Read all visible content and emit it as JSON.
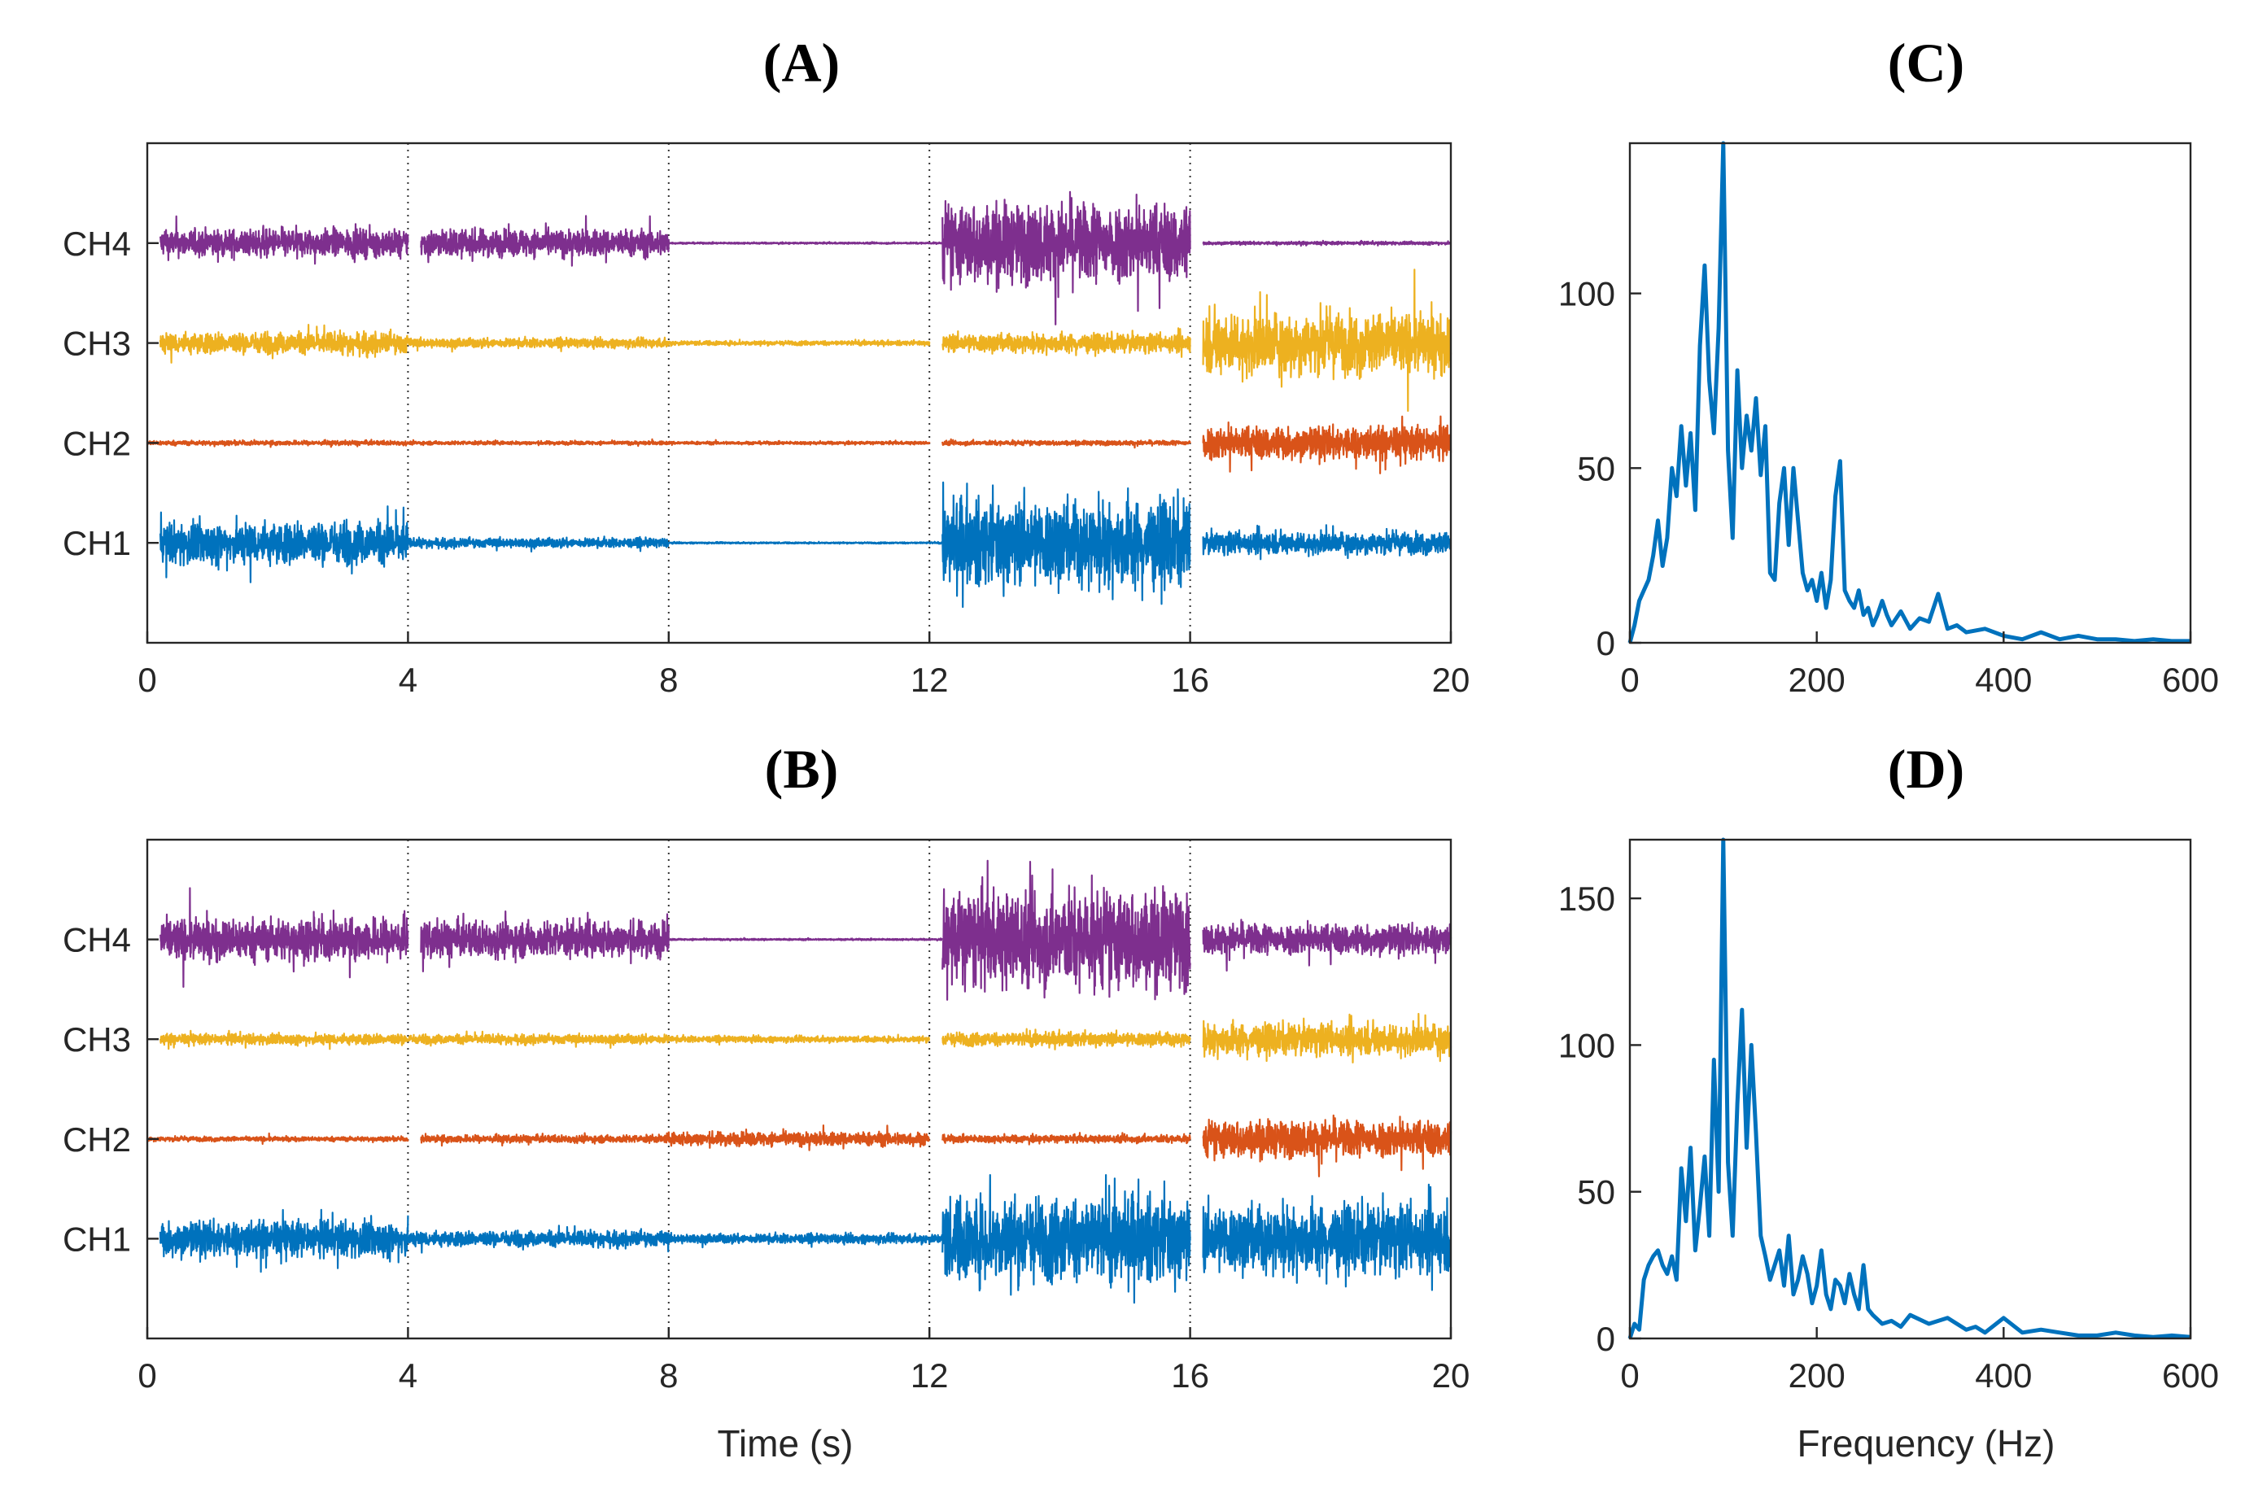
{
  "colors": {
    "ch1": "#0072BD",
    "ch2": "#D95319",
    "ch3": "#EDB120",
    "ch4": "#7E2F8E",
    "axis": "#262626"
  },
  "chart_data": [
    {
      "id": "A",
      "type": "line",
      "title": "(A)",
      "xlabel": "",
      "ylabel": "",
      "xlim": [
        0,
        20
      ],
      "xticks": [
        0,
        4,
        8,
        12,
        16,
        20
      ],
      "xtick_labels": [
        "0",
        "4",
        "8",
        "12",
        "16",
        "20"
      ],
      "vlines": [
        4,
        8,
        12,
        16
      ],
      "channels": [
        {
          "name": "CH4",
          "segments": [
            {
              "start": 0.2,
              "end": 4,
              "amp": 0.09
            },
            {
              "start": 4.2,
              "end": 8,
              "amp": 0.09
            },
            {
              "start": 8,
              "end": 12.2,
              "amp": 0.005
            },
            {
              "start": 12.2,
              "end": 16,
              "amp": 0.26
            },
            {
              "start": 16.2,
              "end": 20,
              "amp": 0.01
            }
          ]
        },
        {
          "name": "CH3",
          "segments": [
            {
              "start": 0.2,
              "end": 4,
              "amp": 0.07
            },
            {
              "start": 4,
              "end": 8,
              "amp": 0.03
            },
            {
              "start": 8,
              "end": 12,
              "amp": 0.015
            },
            {
              "start": 12.2,
              "end": 16,
              "amp": 0.06
            },
            {
              "start": 16.2,
              "end": 20,
              "amp": 0.2
            }
          ]
        },
        {
          "name": "CH2",
          "segments": [
            {
              "start": 0,
              "end": 4,
              "amp": 0.015
            },
            {
              "start": 4,
              "end": 8,
              "amp": 0.012
            },
            {
              "start": 8,
              "end": 12,
              "amp": 0.01
            },
            {
              "start": 12.2,
              "end": 16,
              "amp": 0.015
            },
            {
              "start": 16.2,
              "end": 20,
              "amp": 0.11
            }
          ]
        },
        {
          "name": "CH1",
          "segments": [
            {
              "start": 0.2,
              "end": 4,
              "amp": 0.14
            },
            {
              "start": 4,
              "end": 8,
              "amp": 0.03
            },
            {
              "start": 8,
              "end": 12.2,
              "amp": 0.005
            },
            {
              "start": 12.2,
              "end": 16,
              "amp": 0.28
            },
            {
              "start": 16.2,
              "end": 20,
              "amp": 0.07
            }
          ]
        }
      ]
    },
    {
      "id": "B",
      "type": "line",
      "title": "(B)",
      "xlabel": "Time (s)",
      "ylabel": "",
      "xlim": [
        0,
        20
      ],
      "xticks": [
        0,
        4,
        8,
        12,
        16,
        20
      ],
      "xtick_labels": [
        "0",
        "4",
        "8",
        "12",
        "16",
        "20"
      ],
      "vlines": [
        4,
        8,
        12,
        16
      ],
      "channels": [
        {
          "name": "CH4",
          "segments": [
            {
              "start": 0.2,
              "end": 4,
              "amp": 0.14
            },
            {
              "start": 4.2,
              "end": 8,
              "amp": 0.12
            },
            {
              "start": 8,
              "end": 12.2,
              "amp": 0.005
            },
            {
              "start": 12.2,
              "end": 16,
              "amp": 0.32
            },
            {
              "start": 16.2,
              "end": 20,
              "amp": 0.1
            }
          ]
        },
        {
          "name": "CH3",
          "segments": [
            {
              "start": 0.2,
              "end": 4,
              "amp": 0.035
            },
            {
              "start": 4,
              "end": 8,
              "amp": 0.03
            },
            {
              "start": 8,
              "end": 12,
              "amp": 0.02
            },
            {
              "start": 12.2,
              "end": 16,
              "amp": 0.045
            },
            {
              "start": 16.2,
              "end": 20,
              "amp": 0.1
            }
          ]
        },
        {
          "name": "CH2",
          "segments": [
            {
              "start": 0,
              "end": 4,
              "amp": 0.015
            },
            {
              "start": 4.2,
              "end": 8,
              "amp": 0.025
            },
            {
              "start": 8,
              "end": 12,
              "amp": 0.045
            },
            {
              "start": 12.2,
              "end": 16,
              "amp": 0.025
            },
            {
              "start": 16.2,
              "end": 20,
              "amp": 0.12
            }
          ]
        },
        {
          "name": "CH1",
          "segments": [
            {
              "start": 0.2,
              "end": 4,
              "amp": 0.12
            },
            {
              "start": 4,
              "end": 8,
              "amp": 0.05
            },
            {
              "start": 8,
              "end": 12.2,
              "amp": 0.03
            },
            {
              "start": 12.2,
              "end": 16,
              "amp": 0.28
            },
            {
              "start": 16.2,
              "end": 20,
              "amp": 0.22
            }
          ]
        }
      ]
    },
    {
      "id": "C",
      "type": "line",
      "title": "(C)",
      "xlabel": "",
      "ylabel": "",
      "xlim": [
        0,
        600
      ],
      "ylim": [
        0,
        143
      ],
      "xticks": [
        0,
        200,
        400,
        600
      ],
      "xtick_labels": [
        "0",
        "200",
        "400",
        "600"
      ],
      "yticks": [
        0,
        50,
        100
      ],
      "ytick_labels": [
        "0",
        "50",
        "100"
      ],
      "x": [
        0,
        5,
        10,
        15,
        20,
        25,
        30,
        35,
        40,
        45,
        50,
        55,
        60,
        65,
        70,
        75,
        80,
        85,
        90,
        95,
        100,
        105,
        110,
        115,
        120,
        125,
        130,
        135,
        140,
        145,
        150,
        155,
        160,
        165,
        170,
        175,
        180,
        185,
        190,
        195,
        200,
        205,
        210,
        215,
        220,
        225,
        230,
        235,
        240,
        245,
        250,
        255,
        260,
        265,
        270,
        275,
        280,
        290,
        300,
        310,
        320,
        330,
        340,
        350,
        360,
        380,
        400,
        420,
        440,
        460,
        480,
        500,
        520,
        540,
        560,
        580,
        600
      ],
      "y": [
        0,
        5,
        12,
        15,
        18,
        25,
        35,
        22,
        30,
        50,
        42,
        62,
        45,
        60,
        38,
        85,
        108,
        75,
        60,
        90,
        143,
        55,
        30,
        78,
        50,
        65,
        55,
        70,
        48,
        62,
        20,
        18,
        40,
        50,
        28,
        50,
        35,
        20,
        15,
        18,
        12,
        20,
        10,
        18,
        42,
        52,
        15,
        12,
        10,
        15,
        8,
        10,
        5,
        8,
        12,
        8,
        5,
        9,
        4,
        7,
        6,
        14,
        4,
        5,
        3,
        4,
        2,
        1,
        3,
        1,
        2,
        1,
        1,
        0.5,
        1,
        0.5,
        0.5
      ]
    },
    {
      "id": "D",
      "type": "line",
      "title": "(D)",
      "xlabel": "Frequency (Hz)",
      "ylabel": "",
      "xlim": [
        0,
        600
      ],
      "ylim": [
        0,
        170
      ],
      "xticks": [
        0,
        200,
        400,
        600
      ],
      "xtick_labels": [
        "0",
        "200",
        "400",
        "600"
      ],
      "yticks": [
        0,
        50,
        100,
        150
      ],
      "ytick_labels": [
        "0",
        "50",
        "100",
        "150"
      ],
      "x": [
        0,
        5,
        10,
        15,
        20,
        25,
        30,
        35,
        40,
        45,
        50,
        55,
        60,
        65,
        70,
        75,
        80,
        85,
        90,
        95,
        100,
        105,
        110,
        115,
        120,
        125,
        130,
        135,
        140,
        145,
        150,
        155,
        160,
        165,
        170,
        175,
        180,
        185,
        190,
        195,
        200,
        205,
        210,
        215,
        220,
        225,
        230,
        235,
        240,
        245,
        250,
        255,
        260,
        270,
        280,
        290,
        300,
        320,
        340,
        360,
        370,
        380,
        400,
        420,
        440,
        460,
        480,
        500,
        520,
        540,
        560,
        580,
        600
      ],
      "y": [
        0,
        5,
        3,
        20,
        25,
        28,
        30,
        25,
        22,
        28,
        20,
        58,
        40,
        65,
        30,
        45,
        62,
        35,
        95,
        50,
        170,
        60,
        35,
        80,
        112,
        65,
        100,
        70,
        35,
        28,
        20,
        25,
        30,
        18,
        35,
        15,
        20,
        28,
        22,
        12,
        18,
        30,
        15,
        10,
        20,
        18,
        12,
        22,
        15,
        10,
        25,
        10,
        8,
        5,
        6,
        4,
        8,
        5,
        7,
        3,
        4,
        2,
        7,
        2,
        3,
        2,
        1,
        1,
        2,
        1,
        0.5,
        1,
        0.5
      ]
    }
  ]
}
